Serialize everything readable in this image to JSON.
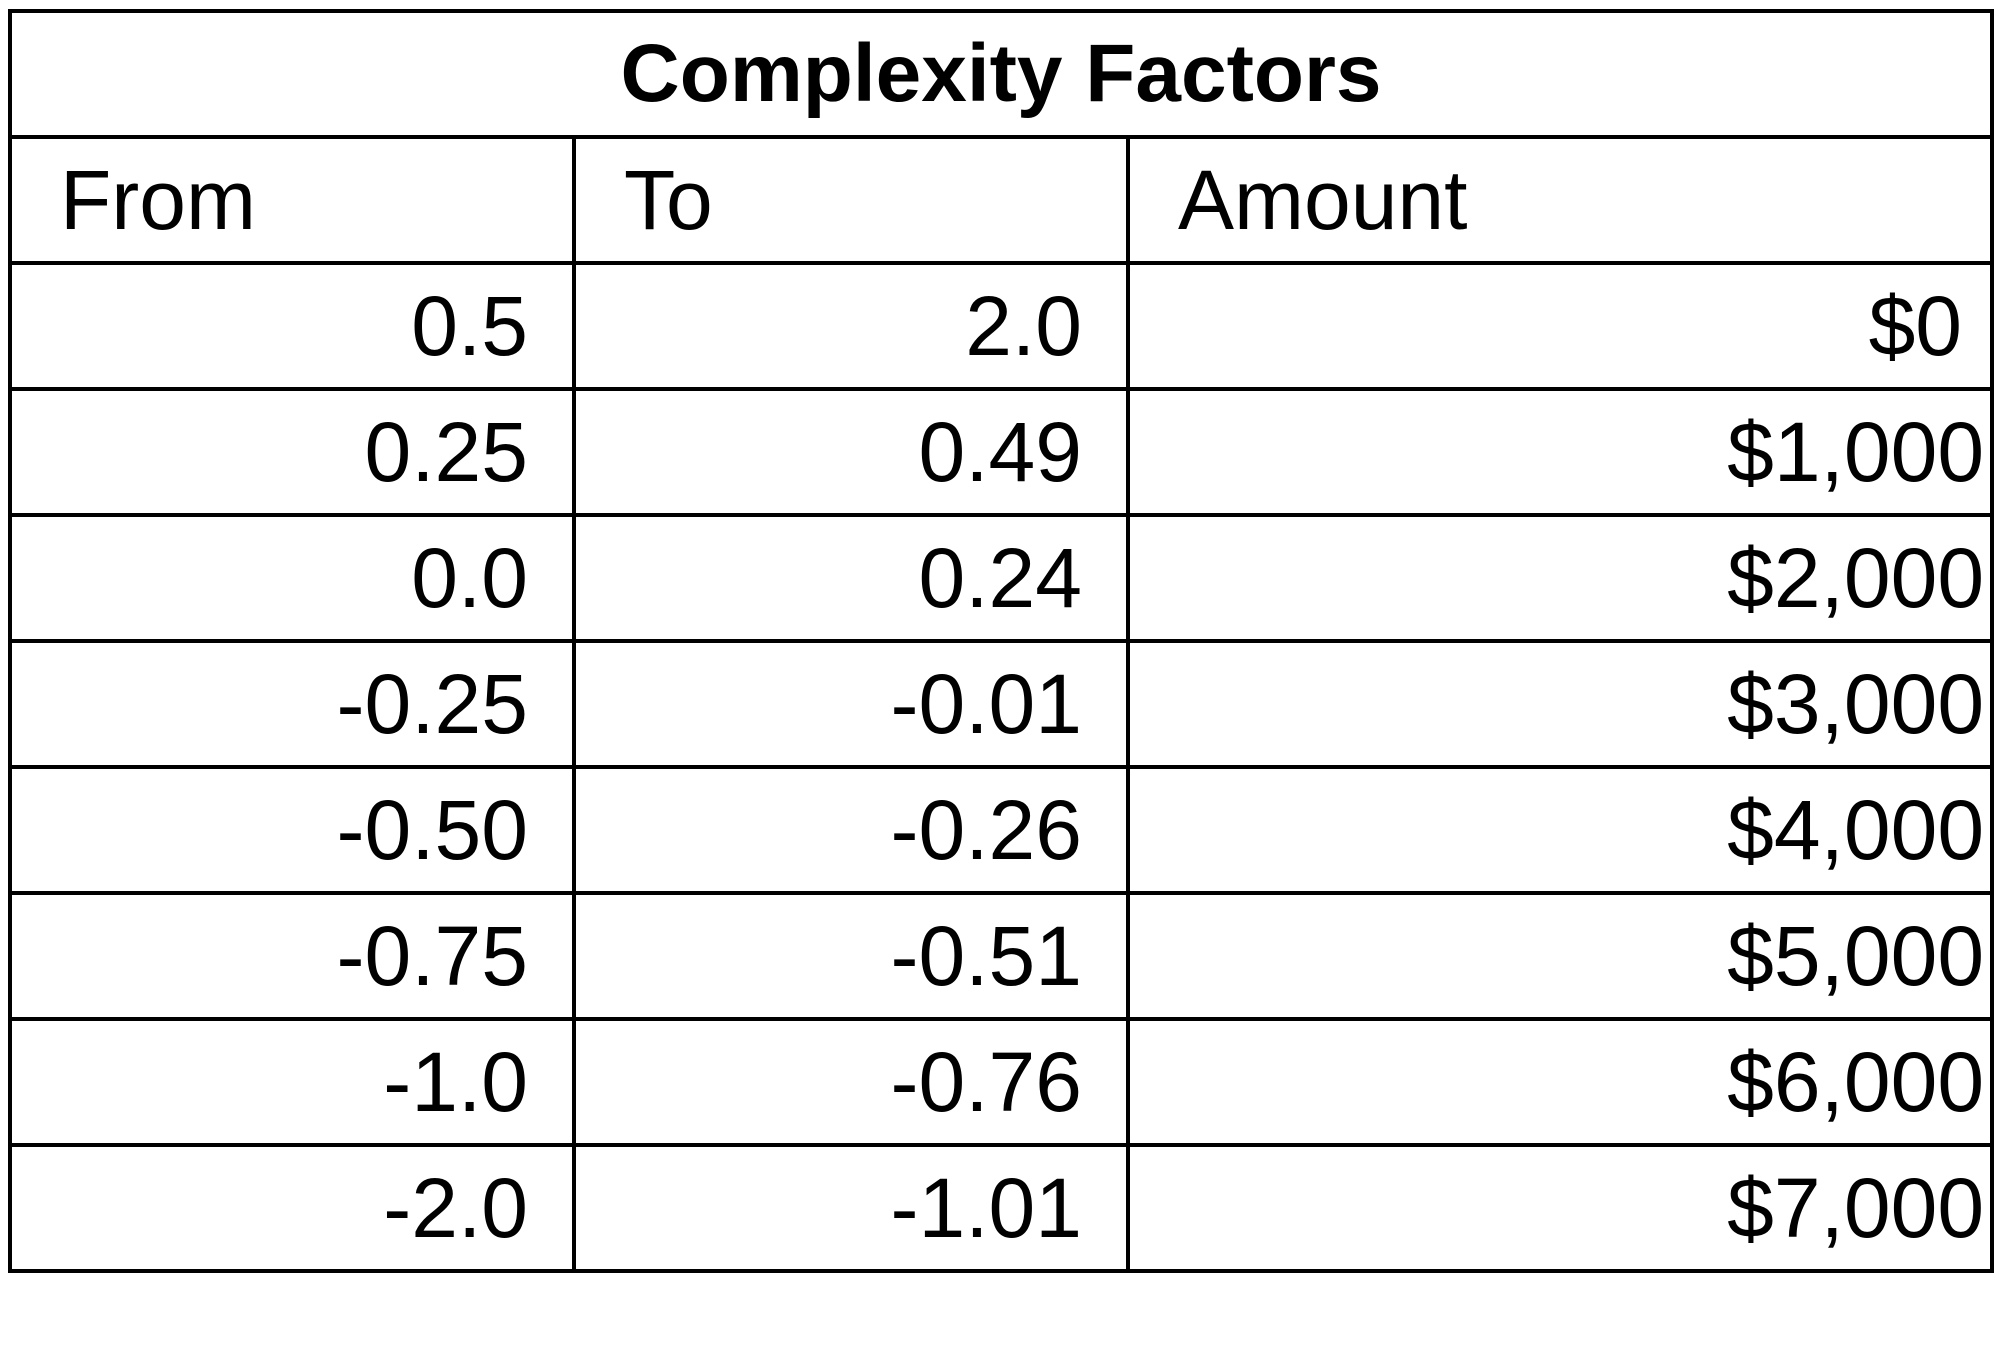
{
  "table": {
    "title": "Complexity Factors",
    "headers": {
      "from": "From",
      "to": "To",
      "amount": "Amount"
    },
    "rows": [
      {
        "from": "0.5",
        "to": "2.0",
        "amount": "$0"
      },
      {
        "from": "0.25",
        "to": "0.49",
        "amount": "$1,000"
      },
      {
        "from": "0.0",
        "to": "0.24",
        "amount": "$2,000"
      },
      {
        "from": "-0.25",
        "to": "-0.01",
        "amount": "$3,000"
      },
      {
        "from": "-0.50",
        "to": "-0.26",
        "amount": "$4,000"
      },
      {
        "from": "-0.75",
        "to": "-0.51",
        "amount": "$5,000"
      },
      {
        "from": "-1.0",
        "to": "-0.76",
        "amount": "$6,000"
      },
      {
        "from": "-2.0",
        "to": "-1.01",
        "amount": "$7,000"
      }
    ]
  }
}
